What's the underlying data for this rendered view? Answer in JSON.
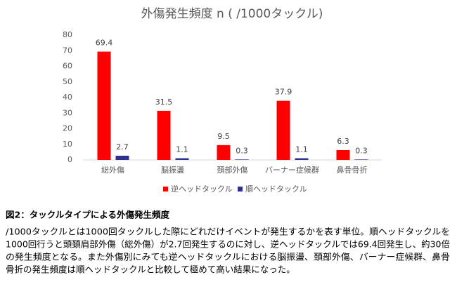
{
  "chart_data": {
    "type": "bar",
    "title": "外傷発生頻度 n ( /1000タックル)",
    "categories": [
      "総外傷",
      "脳振盪",
      "頚部外傷",
      "バーナー症候群",
      "鼻骨骨折"
    ],
    "series": [
      {
        "name": "逆ヘッドタックル",
        "color": "#ff0000",
        "values": [
          69.4,
          31.5,
          9.5,
          37.9,
          6.3
        ]
      },
      {
        "name": "順ヘッドタックル",
        "color": "#2e3192",
        "values": [
          2.7,
          1.1,
          0.3,
          1.1,
          0.3
        ]
      }
    ],
    "ylim": [
      0,
      80
    ],
    "yticks": [
      0,
      10,
      20,
      30,
      40,
      50,
      60,
      70,
      80
    ],
    "grid": false,
    "legend": "bottom"
  },
  "caption": {
    "title": "図2：タックルタイプによる外傷発生頻度",
    "lines": [
      "/1000タックルとは1000回タックルした際にどれだけイベントが発生するかを表す単位。順ヘッドタックルを",
      "1000回行うと頭頚肩部外傷（総外傷）が2.7回発生するのに対し、逆ヘッドタックルでは69.4回発生し、約30倍",
      "の発生頻度となる。また外傷別にみても逆ヘッドタックルにおける脳振盪、頚部外傷、バーナー症候群、鼻骨",
      "骨折の発生頻度は順ヘッドタックルと比較して極めて高い結果になった。"
    ]
  }
}
